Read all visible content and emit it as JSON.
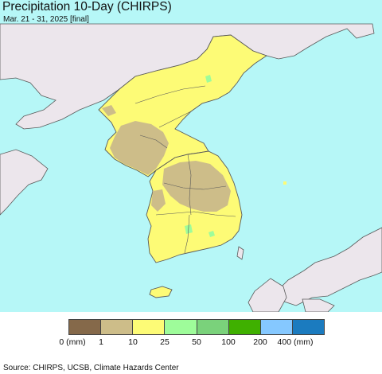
{
  "title": "Precipitation 10-Day (CHIRPS)",
  "subtitle": "Mar. 21 - 31, 2025 [final]",
  "source": "Source: CHIRPS, UCSB, Climate Hazards Center",
  "colors": {
    "ocean": "#b6f7f7",
    "land_outside": "#ece6ec",
    "border": "#5a5a5a"
  },
  "legend": {
    "swatches": [
      {
        "color": "#85694a"
      },
      {
        "color": "#cdbd89"
      },
      {
        "color": "#fdfb76"
      },
      {
        "color": "#9efc9a"
      },
      {
        "color": "#7ad27b"
      },
      {
        "color": "#3fb000"
      },
      {
        "color": "#85c8ff"
      },
      {
        "color": "#1b7bbf"
      }
    ],
    "ticks": [
      "0 (mm)",
      "1",
      "10",
      "25",
      "50",
      "100",
      "200",
      "400 (mm)"
    ]
  }
}
